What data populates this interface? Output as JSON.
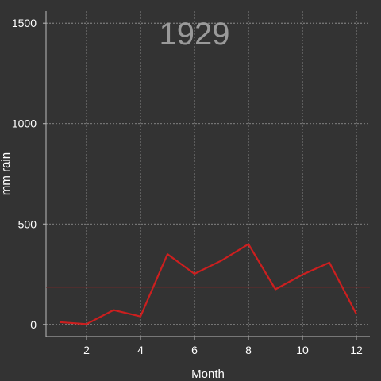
{
  "chart_data": {
    "type": "line",
    "title": "",
    "annotation": "1929",
    "xlabel": "Month",
    "ylabel": "mm rain",
    "xlim": [
      0.5,
      12.5
    ],
    "ylim": [
      -60,
      1560
    ],
    "x_ticks": [
      2,
      4,
      6,
      8,
      10,
      12
    ],
    "y_ticks": [
      0,
      500,
      1000,
      1500
    ],
    "grid": true,
    "legend": "none",
    "series": [
      {
        "x": [
          1,
          2,
          3,
          4,
          5,
          6,
          7,
          8,
          9,
          10,
          11,
          12
        ],
        "values": [
          12,
          2,
          72,
          40,
          350,
          252,
          318,
          400,
          175,
          248,
          308,
          52
        ]
      }
    ],
    "reference_line": {
      "y": 185
    },
    "colors": {
      "background": "#333333",
      "grid": "#9a9a9a",
      "axis": "#bbbbbb",
      "line": "#cc1f1f",
      "reference_line": "#6b2a2a",
      "annotation": "#9a9a9a"
    }
  }
}
